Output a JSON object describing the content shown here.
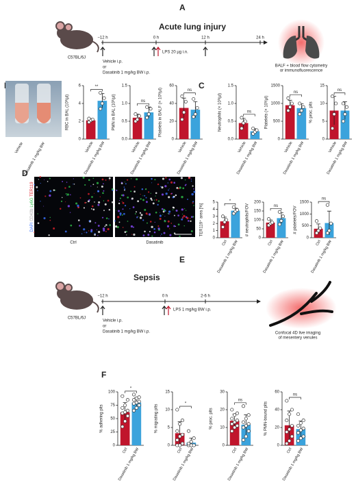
{
  "panel_labels": [
    "A",
    "B",
    "C",
    "D",
    "E",
    "F"
  ],
  "timeline_a": {
    "title": "Acute lung injury",
    "times": [
      "−12 h",
      "0 h",
      "12 h",
      "24 h"
    ],
    "strain": "C57BL/6J",
    "treatment": [
      "Vehicle i.p.",
      "or",
      "Dasatinib 1 mg/kg BW i.p."
    ],
    "challenge": "LPS 20 µg i.n.",
    "readout": [
      "BALF + blood flow cytometry",
      "or immunofluorescence"
    ]
  },
  "photo_b": {
    "labels": [
      "Vehicle",
      "Dasatinib 1 mg/kg BW"
    ]
  },
  "images_d": {
    "labels": [
      "Ctrl",
      "Dasatinib"
    ],
    "channels": [
      "DAPI",
      "CD42b",
      "Ly6G",
      "TER119"
    ]
  },
  "timeline_e": {
    "title": "Sepsis",
    "times": [
      "−12 h",
      "0 h",
      "2-6 h"
    ],
    "strain": "C57BL/6J",
    "treatment": [
      "Vehicle i.p.",
      "or",
      "Dasatinib 1 mg/kg BW i.p."
    ],
    "challenge": "LPS 1 mg/kg BW i.p.",
    "readout": [
      "Confocal 4D live imaging",
      "of mesentery venules"
    ]
  },
  "chart_data": [
    {
      "type": "bar",
      "y_label": "RBC in BAL (10³/µl)",
      "categories": [
        "Vehicle",
        "Dasatinib 1 mg/kg BW"
      ],
      "colors": [
        "#c0152c",
        "#3ba3dc"
      ],
      "values": [
        2.1,
        4.3
      ],
      "errors": [
        0.2,
        0.8
      ],
      "points": [
        [
          1.9,
          2.1,
          2.2,
          2.3
        ],
        [
          3.4,
          4.0,
          4.6,
          5.2
        ]
      ],
      "ylim": [
        0,
        6
      ],
      "yticks": [
        0,
        2,
        4,
        6
      ],
      "significance": "**"
    },
    {
      "type": "bar",
      "y_label": "PMN in BAL (10³/µl)",
      "categories": [
        "Vehicle",
        "Dasatinib 1 mg/kg BW"
      ],
      "colors": [
        "#c0152c",
        "#3ba3dc"
      ],
      "values": [
        0.6,
        0.75
      ],
      "errors": [
        0.1,
        0.15
      ],
      "points": [
        [
          0.5,
          0.55,
          0.65,
          0.7
        ],
        [
          0.6,
          0.7,
          0.85,
          0.9
        ]
      ],
      "ylim": [
        0,
        1.5
      ],
      "yticks": [
        {
          "value": 0,
          "label": "0.0"
        },
        0.5,
        {
          "value": 1,
          "label": "1.0"
        },
        1.5
      ],
      "significance": "ns"
    },
    {
      "type": "bar",
      "y_label": "Platelets in BALF (× 10³/µl)",
      "categories": [
        "Vehicle",
        "Dasatinib 1 mg/kg BW"
      ],
      "colors": [
        "#c0152c",
        "#3ba3dc"
      ],
      "values": [
        35,
        33
      ],
      "errors": [
        11,
        9
      ],
      "points": [
        [
          22,
          30,
          42,
          48
        ],
        [
          25,
          28,
          35,
          45
        ]
      ],
      "ylim": [
        0,
        60
      ],
      "yticks": [
        0,
        20,
        40,
        60
      ],
      "significance": "ns"
    },
    {
      "type": "bar",
      "y_label": "Neutrophils (× 10³/µl)",
      "categories": [
        "Vehicle",
        "Dasatinib 1 mg/kg BW"
      ],
      "colors": [
        "#c0152c",
        "#3ba3dc"
      ],
      "values": [
        0.45,
        0.22
      ],
      "errors": [
        0.13,
        0.07
      ],
      "points": [
        [
          0.3,
          0.45,
          0.5,
          0.6
        ],
        [
          0.15,
          0.2,
          0.25,
          0.3
        ]
      ],
      "ylim": [
        0,
        1.5
      ],
      "yticks": [
        {
          "value": 0,
          "label": "0.0"
        },
        0.5,
        {
          "value": 1,
          "label": "1.0"
        },
        1.5
      ],
      "significance": "ns"
    },
    {
      "type": "bar",
      "y_label": "Platelets (× 10³/µl)",
      "categories": [
        "Vehicle",
        "Dasatinib 1 mg/kg BW"
      ],
      "colors": [
        "#c0152c",
        "#3ba3dc"
      ],
      "values": [
        950,
        870
      ],
      "errors": [
        140,
        120
      ],
      "points": [
        [
          800,
          900,
          1000,
          1150
        ],
        [
          700,
          800,
          900,
          1000
        ]
      ],
      "ylim": [
        0,
        1500
      ],
      "yticks": [
        0,
        500,
        1000,
        1500
      ],
      "significance": "ns"
    },
    {
      "type": "bar",
      "y_label": "% proc. plts",
      "categories": [
        "Vehicle",
        "Dasatinib 1 mg/kg BW"
      ],
      "colors": [
        "#c0152c",
        "#3ba3dc"
      ],
      "values": [
        8,
        8
      ],
      "errors": [
        4,
        2.5
      ],
      "points": [
        [
          3,
          7,
          10,
          12
        ],
        [
          5,
          7,
          9,
          10
        ]
      ],
      "ylim": [
        0,
        15
      ],
      "yticks": [
        0,
        5,
        10,
        15
      ],
      "significance": "ns"
    },
    {
      "type": "bar",
      "y_label": "TER119⁺ area [%]",
      "categories": [
        "Ctrl",
        "Dasatinib 1 mg/kg BW"
      ],
      "colors": [
        "#c0152c",
        "#3ba3dc"
      ],
      "values": [
        2.3,
        3.8
      ],
      "errors": [
        0.6,
        0.35
      ],
      "points": [
        [
          1.5,
          2.2,
          2.5,
          3.0
        ],
        [
          3.4,
          3.7,
          3.9,
          4.3
        ]
      ],
      "ylim": [
        0,
        5
      ],
      "yticks": [
        0,
        1,
        2,
        3,
        4,
        5
      ],
      "significance": "*"
    },
    {
      "type": "bar",
      "y_label": "# neutrophils/FOV",
      "categories": [
        "Ctrl",
        "Dasatinib 1 mg/kg BW"
      ],
      "colors": [
        "#c0152c",
        "#3ba3dc"
      ],
      "values": [
        85,
        110
      ],
      "errors": [
        15,
        30
      ],
      "points": [
        [
          70,
          80,
          85,
          105
        ],
        [
          75,
          95,
          120,
          145
        ]
      ],
      "ylim": [
        0,
        200
      ],
      "yticks": [
        0,
        50,
        100,
        150,
        200
      ],
      "significance": "ns"
    },
    {
      "type": "bar",
      "y_label": "# platelets/FOV",
      "categories": [
        "Ctrl",
        "Dasatinib 1 mg/kg BW"
      ],
      "colors": [
        "#c0152c",
        "#3ba3dc"
      ],
      "values": [
        380,
        620
      ],
      "errors": [
        200,
        500
      ],
      "points": [
        [
          200,
          300,
          400,
          700
        ],
        [
          200,
          300,
          600,
          1380
        ]
      ],
      "ylim": [
        0,
        1500
      ],
      "yticks": [
        0,
        500,
        1000,
        1500
      ],
      "significance": "ns"
    },
    {
      "type": "bar",
      "y_label": "% adhering plts",
      "categories": [
        "Ctrl",
        "Dasatinib 1 mg/kg BW"
      ],
      "colors": [
        "#c0152c",
        "#3ba3dc"
      ],
      "values": [
        62,
        80
      ],
      "errors": [
        18,
        9
      ],
      "points": [
        [
          35,
          45,
          55,
          60,
          62,
          65,
          70,
          75,
          85,
          92
        ],
        [
          65,
          70,
          75,
          78,
          80,
          82,
          85,
          88,
          90,
          95
        ]
      ],
      "ylim": [
        0,
        100
      ],
      "yticks": [
        0,
        25,
        50,
        75,
        100
      ],
      "significance": "*"
    },
    {
      "type": "bar",
      "y_label": "% migrating plts",
      "categories": [
        "Ctrl",
        "Dasatinib 1 mg/kg BW"
      ],
      "colors": [
        "#c0152c",
        "#3ba3dc"
      ],
      "values": [
        3.4,
        0.75
      ],
      "errors": [
        3.2,
        1.3
      ],
      "points": [
        [
          0,
          0,
          0.5,
          1.5,
          2.5,
          3,
          4,
          6,
          7,
          10
        ],
        [
          0,
          0,
          0,
          0,
          0,
          0,
          0.5,
          1,
          2,
          4
        ]
      ],
      "ylim": [
        0,
        15
      ],
      "yticks": [
        0,
        5,
        10,
        15
      ],
      "significance": "*"
    },
    {
      "type": "bar",
      "y_label": "% proc. plts",
      "categories": [
        "Ctrl",
        "Dasatinib 1 mg/kg BW"
      ],
      "colors": [
        "#c0152c",
        "#3ba3dc"
      ],
      "values": [
        13.8,
        11.6
      ],
      "errors": [
        3.8,
        5.5
      ],
      "points": [
        [
          8,
          10,
          11,
          12,
          13,
          14,
          15,
          17,
          18,
          20
        ],
        [
          3,
          5,
          8,
          10,
          11,
          12,
          13,
          15,
          17,
          22
        ]
      ],
      "ylim": [
        0,
        30
      ],
      "yticks": [
        0,
        10,
        20,
        30
      ],
      "significance": "ns"
    },
    {
      "type": "bar",
      "y_label": "% PMN-bound plts",
      "categories": [
        "Ctrl",
        "Dasatinib 1 mg/kg BW"
      ],
      "colors": [
        "#c0152c",
        "#3ba3dc"
      ],
      "values": [
        22.5,
        18.3
      ],
      "errors": [
        16,
        9
      ],
      "points": [
        [
          2,
          5,
          10,
          15,
          18,
          22,
          28,
          35,
          40,
          50
        ],
        [
          5,
          8,
          10,
          14,
          17,
          19,
          22,
          25,
          28,
          35
        ]
      ],
      "ylim": [
        0,
        60
      ],
      "yticks": [
        0,
        20,
        40,
        60
      ],
      "significance": "ns"
    }
  ]
}
